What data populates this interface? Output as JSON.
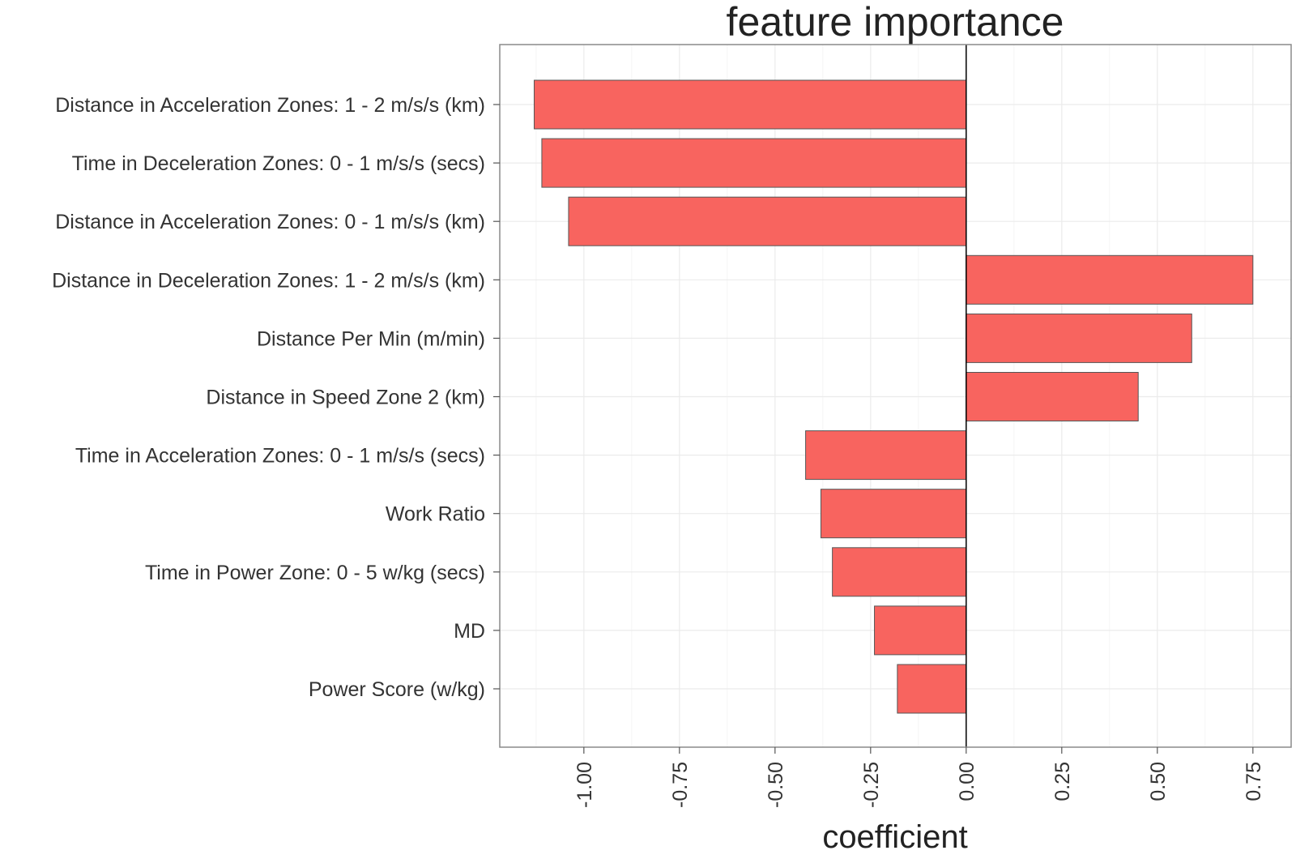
{
  "chart_data": {
    "type": "bar",
    "orientation": "horizontal",
    "title": "feature importance",
    "xlabel": "coefficient",
    "ylabel": "",
    "xlim": [
      -1.22,
      0.85
    ],
    "x_ticks": [
      -1.0,
      -0.75,
      -0.5,
      -0.25,
      0.0,
      0.25,
      0.5,
      0.75
    ],
    "x_tick_labels": [
      "-1.00",
      "-0.75",
      "-0.50",
      "-0.25",
      "0.00",
      "0.25",
      "0.50",
      "0.75"
    ],
    "categories": [
      "Distance in Acceleration Zones: 1 - 2 m/s/s  (km)",
      "Time in Deceleration Zones: 0 - 1 m/s/s (secs)",
      "Distance in Acceleration Zones: 0 - 1 m/s/s  (km)",
      "Distance in Deceleration Zones: 1 - 2 m/s/s  (km)",
      "Distance Per Min (m/min)",
      "Distance in Speed Zone 2  (km)",
      "Time in Acceleration Zones: 0 - 1 m/s/s (secs)",
      "Work Ratio",
      "Time in Power Zone: 0 - 5 w/kg (secs)",
      "MD",
      "Power Score (w/kg)"
    ],
    "values": [
      -1.13,
      -1.11,
      -1.04,
      0.75,
      0.59,
      0.45,
      -0.42,
      -0.38,
      -0.35,
      -0.24,
      -0.18
    ],
    "grid": true,
    "bar_color": "#f8645f",
    "bar_edge_color": "#555555",
    "zero_line_color": "#000000"
  }
}
